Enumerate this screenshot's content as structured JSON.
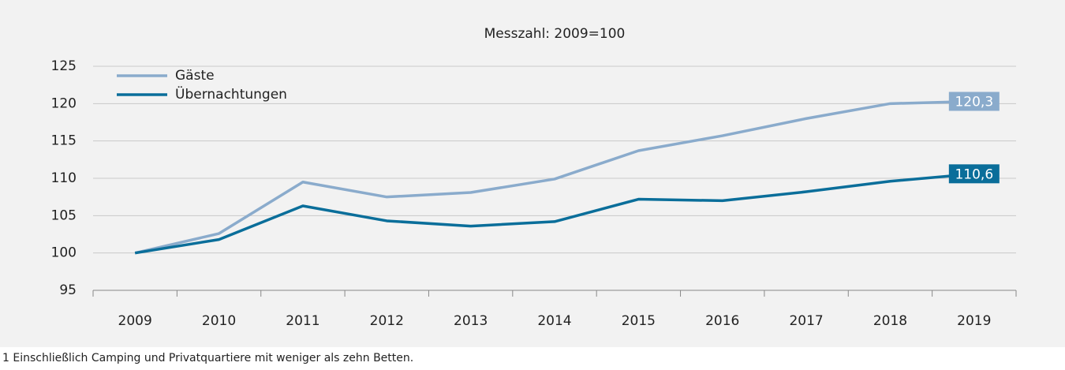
{
  "chart_data": {
    "type": "line",
    "title": "Messzahl: 2009=100",
    "categories": [
      "2009",
      "2010",
      "2011",
      "2012",
      "2013",
      "2014",
      "2015",
      "2016",
      "2017",
      "2018",
      "2019"
    ],
    "series": [
      {
        "name": "Gäste",
        "color": "#8aabcc",
        "values": [
          100,
          102.6,
          109.5,
          107.5,
          108.1,
          109.9,
          113.7,
          115.7,
          118.0,
          120.0,
          120.3
        ],
        "value_labels": [
          null,
          null,
          null,
          null,
          null,
          null,
          null,
          null,
          null,
          null,
          "120,3"
        ]
      },
      {
        "name": "Übernachtungen",
        "color": "#0a6e9a",
        "values": [
          100,
          101.8,
          106.3,
          104.3,
          103.6,
          104.2,
          107.2,
          107.0,
          108.2,
          109.6,
          110.6
        ],
        "value_labels": [
          null,
          null,
          null,
          null,
          null,
          null,
          null,
          null,
          null,
          null,
          "110,6"
        ]
      }
    ],
    "ylim": [
      95,
      125
    ],
    "yticks": [
      95,
      100,
      105,
      110,
      115,
      120,
      125
    ],
    "grid": true,
    "legend": "top-left",
    "footnote": "1 Einschließlich Camping und Privatquartiere mit weniger als zehn Betten."
  }
}
